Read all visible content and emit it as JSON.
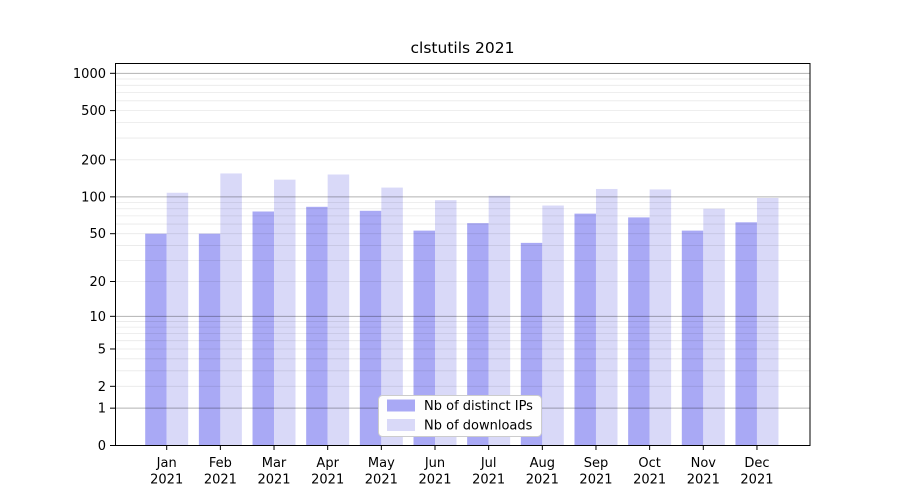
{
  "chart_data": {
    "type": "bar",
    "title": "clstutils 2021",
    "categories": [
      {
        "line1": "Jan",
        "line2": "2021"
      },
      {
        "line1": "Feb",
        "line2": "2021"
      },
      {
        "line1": "Mar",
        "line2": "2021"
      },
      {
        "line1": "Apr",
        "line2": "2021"
      },
      {
        "line1": "May",
        "line2": "2021"
      },
      {
        "line1": "Jun",
        "line2": "2021"
      },
      {
        "line1": "Jul",
        "line2": "2021"
      },
      {
        "line1": "Aug",
        "line2": "2021"
      },
      {
        "line1": "Sep",
        "line2": "2021"
      },
      {
        "line1": "Oct",
        "line2": "2021"
      },
      {
        "line1": "Nov",
        "line2": "2021"
      },
      {
        "line1": "Dec",
        "line2": "2021"
      }
    ],
    "series": [
      {
        "name": "Nb of distinct IPs",
        "color": "#a9a9f5",
        "values": [
          50,
          50,
          76,
          83,
          77,
          53,
          61,
          42,
          73,
          68,
          53,
          62
        ]
      },
      {
        "name": "Nb of downloads",
        "color": "#d9d9f8",
        "values": [
          108,
          155,
          138,
          152,
          119,
          94,
          102,
          85,
          116,
          115,
          80,
          98
        ]
      }
    ],
    "y_axis": {
      "scale": "log1p",
      "ticks": [
        1000,
        500,
        200,
        100,
        50,
        20,
        10,
        5,
        2,
        1,
        0
      ],
      "ylim": [
        0,
        1200
      ],
      "major_grid_at": [
        1,
        10,
        100,
        1000
      ],
      "minor_grid": "2-9 within each decade"
    },
    "grid": {
      "major_color": "rgba(0,0,0,0.30)",
      "minor_color": "rgba(0,0,0,0.09)"
    },
    "legend": {
      "position": "lower center"
    },
    "xlabel": "",
    "ylabel": ""
  }
}
